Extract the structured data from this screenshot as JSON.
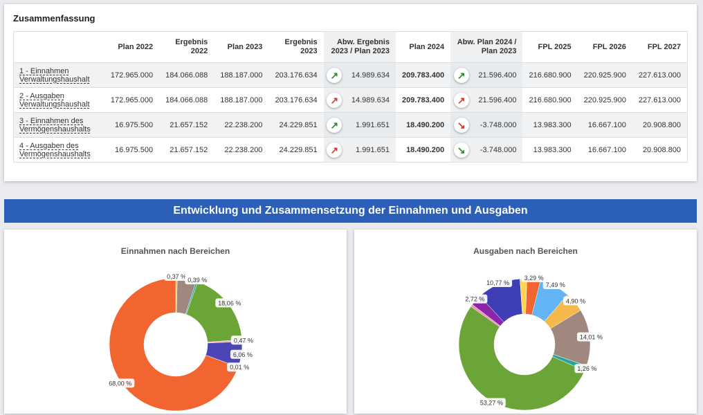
{
  "summary": {
    "title": "Zusammenfassung",
    "headers": {
      "plan2022": "Plan 2022",
      "erg2022_l1": "Ergebnis",
      "erg2022_l2": "2022",
      "plan2023": "Plan 2023",
      "erg2023_l1": "Ergebnis",
      "erg2023_l2": "2023",
      "abw1_l1": "Abw. Ergebnis",
      "abw1_l2": "2023 / Plan 2023",
      "plan2024": "Plan 2024",
      "abw2_l1": "Abw. Plan 2024 /",
      "abw2_l2": "Plan 2023",
      "fpl2025": "FPL 2025",
      "fpl2026": "FPL 2026",
      "fpl2027": "FPL 2027"
    },
    "rows": [
      {
        "label": "1 - Einnahmen Verwaltungshaushalt",
        "plan2022": "172.965.000",
        "erg2022": "184.066.088",
        "plan2023": "188.187.000",
        "erg2023": "203.176.634",
        "arrow1": "↗",
        "abw1": "14.989.634",
        "plan2024": "209.783.400",
        "arrow2": "↗",
        "abw2": "21.596.400",
        "fpl2025": "216.680.900",
        "fpl2026": "220.925.900",
        "fpl2027": "227.613.000"
      },
      {
        "label": "2 - Ausgaben Verwaltungshaushalt",
        "plan2022": "172.965.000",
        "erg2022": "184.066.088",
        "plan2023": "188.187.000",
        "erg2023": "203.176.634",
        "arrow1": "↗",
        "abw1": "14.989.634",
        "plan2024": "209.783.400",
        "arrow2": "↗",
        "abw2": "21.596.400",
        "fpl2025": "216.680.900",
        "fpl2026": "220.925.900",
        "fpl2027": "227.613.000"
      },
      {
        "label": "3 - Einnahmen des Vermögenshaushalts",
        "plan2022": "16.975.500",
        "erg2022": "21.657.152",
        "plan2023": "22.238.200",
        "erg2023": "24.229.851",
        "arrow1": "↗",
        "abw1": "1.991.651",
        "plan2024": "18.490.200",
        "arrow2": "↘",
        "abw2": "-3.748.000",
        "fpl2025": "13.983.300",
        "fpl2026": "16.667.100",
        "fpl2027": "20.908.800"
      },
      {
        "label": "4 - Ausgaben des Vermögenshaushalts",
        "plan2022": "16.975.500",
        "erg2022": "21.657.152",
        "plan2023": "22.238.200",
        "erg2023": "24.229.851",
        "arrow1": "↗",
        "abw1": "1.991.651",
        "plan2024": "18.490.200",
        "arrow2": "↘",
        "abw2": "-3.748.000",
        "fpl2025": "13.983.300",
        "fpl2026": "16.667.100",
        "fpl2027": "20.908.800"
      }
    ]
  },
  "banner": "Entwicklung und Zusammensetzung der Einnahmen und Ausgaben",
  "income_chart": {
    "title": "Einnahmen nach Bereichen"
  },
  "expense_chart": {
    "title": "Ausgaben nach Bereichen"
  },
  "chart_data": [
    {
      "type": "pie",
      "title": "Einnahmen nach Bereichen",
      "slices": [
        {
          "value": 0.37,
          "label": "0,37 %",
          "color": "#f7b84b"
        },
        {
          "value": 4.5,
          "label": "",
          "color": "#a1887f"
        },
        {
          "value": 0.39,
          "label": "0,39 %",
          "color": "#26a69a"
        },
        {
          "value": 18.06,
          "label": "18,06 %",
          "color": "#6ca537"
        },
        {
          "value": 0.47,
          "label": "0,47 %",
          "color": "#f4a6b5"
        },
        {
          "value": 6.06,
          "label": "6,06 %",
          "color": "#4b45b5"
        },
        {
          "value": 0.01,
          "label": "0,01 %",
          "color": "#ffd54f"
        },
        {
          "value": 68.0,
          "label": "68,00 %",
          "color": "#f26430"
        }
      ]
    },
    {
      "type": "pie",
      "title": "Ausgaben nach Bereichen",
      "slices": [
        {
          "value": 7.49,
          "label": "7,49 %",
          "color": "#64b5f6"
        },
        {
          "value": 4.9,
          "label": "4,90 %",
          "color": "#f7b84b"
        },
        {
          "value": 14.01,
          "label": "14,01 %",
          "color": "#a1887f"
        },
        {
          "value": 1.26,
          "label": "1,26 %",
          "color": "#26a69a"
        },
        {
          "value": 53.27,
          "label": "53,27 %",
          "color": "#6ca537"
        },
        {
          "value": 0.6,
          "label": "",
          "color": "#f48fb1"
        },
        {
          "value": 2.72,
          "label": "2,72 %",
          "color": "#8e24aa"
        },
        {
          "value": 10.77,
          "label": "10,77 %",
          "color": "#3f3fb5"
        },
        {
          "value": 1.7,
          "label": "",
          "color": "#ffd54f"
        },
        {
          "value": 3.29,
          "label": "3,29 %",
          "color": "#f26430"
        }
      ]
    }
  ]
}
